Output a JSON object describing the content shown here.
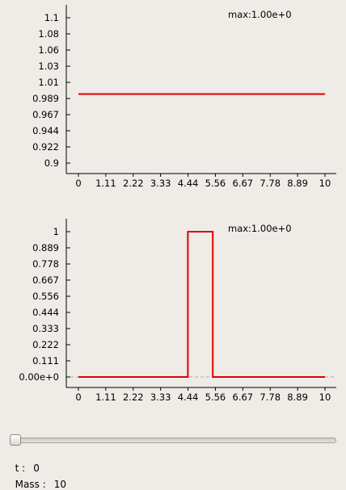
{
  "chart_data": [
    {
      "type": "line",
      "annotation": "max:1.00e+0",
      "x_ticks": [
        "0",
        "1.11",
        "2.22",
        "3.33",
        "4.44",
        "5.56",
        "6.67",
        "7.78",
        "8.89",
        "10"
      ],
      "y_ticks": [
        "0.9",
        "0.922",
        "0.944",
        "0.967",
        "0.989",
        "1.01",
        "1.03",
        "1.06",
        "1.08",
        "1.1"
      ],
      "xlim": [
        0,
        10
      ],
      "ylim": [
        0.9,
        1.1
      ],
      "series": [
        {
          "x": [
            0,
            10
          ],
          "y": [
            0.995,
            0.995
          ],
          "color": "#dd0000"
        }
      ],
      "grid": false
    },
    {
      "type": "line",
      "annotation": "max:1.00e+0",
      "x_ticks": [
        "0",
        "1.11",
        "2.22",
        "3.33",
        "4.44",
        "5.56",
        "6.67",
        "7.78",
        "8.89",
        "10"
      ],
      "y_ticks": [
        "0.00e+0",
        "0.111",
        "0.222",
        "0.333",
        "0.444",
        "0.556",
        "0.667",
        "0.778",
        "0.889",
        "1"
      ],
      "xlim": [
        0,
        10
      ],
      "ylim": [
        0,
        1
      ],
      "zero_line": true,
      "series": [
        {
          "x": [
            0,
            4.44,
            4.44,
            4.44,
            4.44,
            5.45,
            5.45,
            5.45,
            5.45,
            10
          ],
          "y": [
            0,
            0,
            0.556,
            0.556,
            1,
            1,
            0.556,
            0.556,
            0,
            0
          ],
          "color": "#dd0000"
        }
      ],
      "grid": false
    }
  ],
  "controls": {
    "slider": {
      "value": 0,
      "min": 0,
      "max": 1
    },
    "t_label": "t :",
    "t_value": "0",
    "mass_label": "Mass :",
    "mass_value": "10"
  }
}
